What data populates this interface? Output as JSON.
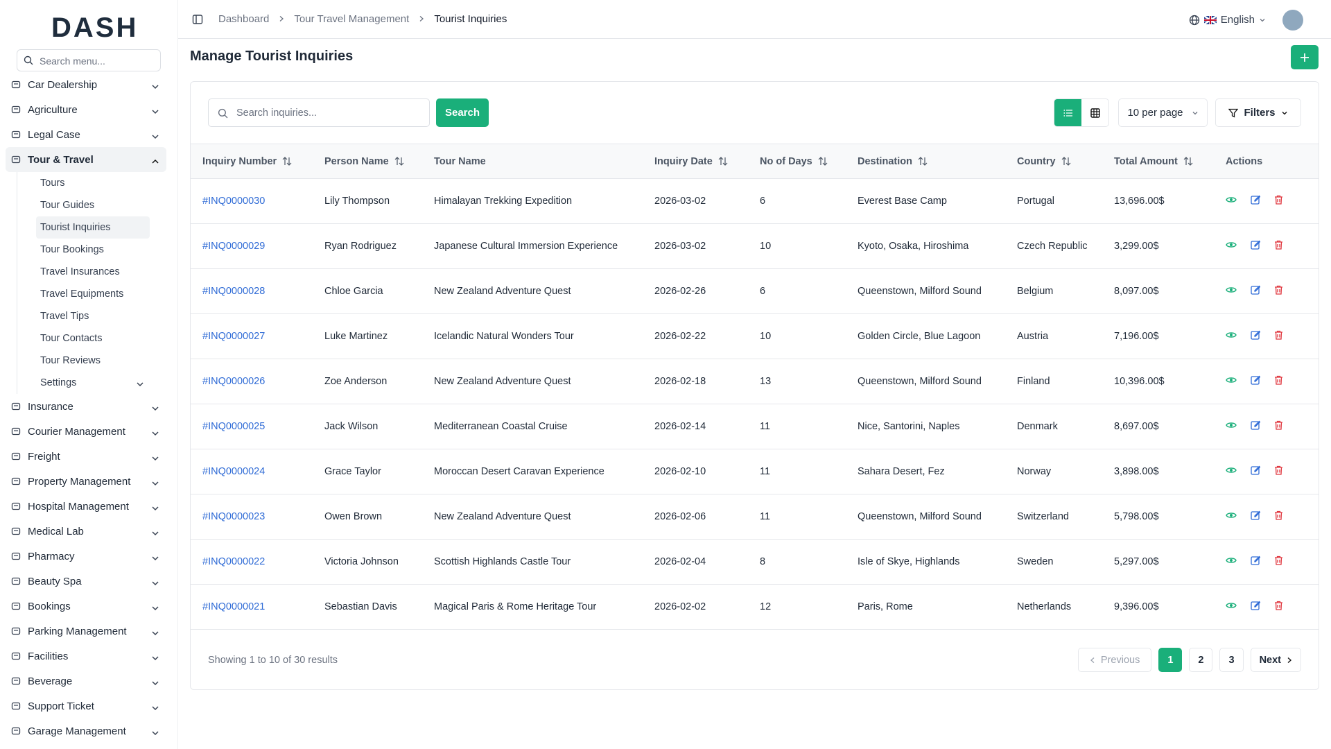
{
  "sidebar": {
    "brand": "DASH",
    "search_placeholder": "Search menu...",
    "menu": [
      {
        "label": "Car Dealership"
      },
      {
        "label": "Agriculture"
      },
      {
        "label": "Legal Case"
      },
      {
        "label": "Tour & Travel",
        "children": [
          "Tours",
          "Tour Guides",
          "Tourist Inquiries",
          "Tour Bookings",
          "Travel Insurances",
          "Travel Equipments",
          "Travel Tips",
          "Tour Contacts",
          "Tour Reviews",
          "Settings"
        ]
      },
      {
        "label": "Insurance"
      },
      {
        "label": "Courier Management"
      },
      {
        "label": "Freight"
      },
      {
        "label": "Property Management"
      },
      {
        "label": "Hospital Management"
      },
      {
        "label": "Medical Lab"
      },
      {
        "label": "Pharmacy"
      },
      {
        "label": "Beauty Spa"
      },
      {
        "label": "Bookings"
      },
      {
        "label": "Parking Management"
      },
      {
        "label": "Facilities"
      },
      {
        "label": "Beverage"
      },
      {
        "label": "Support Ticket"
      },
      {
        "label": "Garage Management"
      }
    ]
  },
  "header": {
    "breadcrumb": [
      "Dashboard",
      "Tour Travel Management",
      "Tourist Inquiries"
    ],
    "language": "English"
  },
  "page": {
    "title": "Manage Tourist Inquiries"
  },
  "toolbar": {
    "search_placeholder": "Search inquiries...",
    "search_button": "Search",
    "per_page": "10 per page",
    "filters": "Filters"
  },
  "table": {
    "columns": [
      "Inquiry Number",
      "Person Name",
      "Tour Name",
      "Inquiry Date",
      "No of Days",
      "Destination",
      "Country",
      "Total Amount",
      "Actions"
    ],
    "rows": [
      [
        "#INQ0000030",
        "Lily Thompson",
        "Himalayan Trekking Expedition",
        "2026-03-02",
        6,
        "Everest Base Camp",
        "Portugal",
        "13,696.00$"
      ],
      [
        "#INQ0000029",
        "Ryan Rodriguez",
        "Japanese Cultural Immersion Experience",
        "2026-03-02",
        10,
        "Kyoto, Osaka, Hiroshima",
        "Czech Republic",
        "3,299.00$"
      ],
      [
        "#INQ0000028",
        "Chloe Garcia",
        "New Zealand Adventure Quest",
        "2026-02-26",
        6,
        "Queenstown, Milford Sound",
        "Belgium",
        "8,097.00$"
      ],
      [
        "#INQ0000027",
        "Luke Martinez",
        "Icelandic Natural Wonders Tour",
        "2026-02-22",
        10,
        "Golden Circle, Blue Lagoon",
        "Austria",
        "7,196.00$"
      ],
      [
        "#INQ0000026",
        "Zoe Anderson",
        "New Zealand Adventure Quest",
        "2026-02-18",
        13,
        "Queenstown, Milford Sound",
        "Finland",
        "10,396.00$"
      ],
      [
        "#INQ0000025",
        "Jack Wilson",
        "Mediterranean Coastal Cruise",
        "2026-02-14",
        11,
        "Nice, Santorini, Naples",
        "Denmark",
        "8,697.00$"
      ],
      [
        "#INQ0000024",
        "Grace Taylor",
        "Moroccan Desert Caravan Experience",
        "2026-02-10",
        11,
        "Sahara Desert, Fez",
        "Norway",
        "3,898.00$"
      ],
      [
        "#INQ0000023",
        "Owen Brown",
        "New Zealand Adventure Quest",
        "2026-02-06",
        11,
        "Queenstown, Milford Sound",
        "Switzerland",
        "5,798.00$"
      ],
      [
        "#INQ0000022",
        "Victoria Johnson",
        "Scottish Highlands Castle Tour",
        "2026-02-04",
        8,
        "Isle of Skye, Highlands",
        "Sweden",
        "5,297.00$"
      ],
      [
        "#INQ0000021",
        "Sebastian Davis",
        "Magical Paris & Rome Heritage Tour",
        "2026-02-02",
        12,
        "Paris, Rome",
        "Netherlands",
        "9,396.00$"
      ]
    ]
  },
  "pagination": {
    "summary": "Showing 1 to 10 of 30 results",
    "previous": "Previous",
    "pages": [
      1,
      2,
      3
    ],
    "next": "Next"
  }
}
